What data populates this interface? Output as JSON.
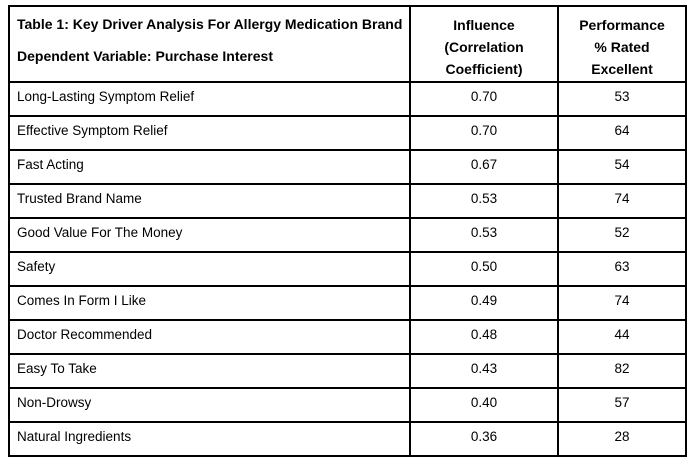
{
  "page": {
    "background_color": "#ffffff",
    "border_color": "#000000"
  },
  "table": {
    "title": "Table 1: Key Driver Analysis For Allergy Medication Brand",
    "subtitle": "Dependent Variable: Purchase Interest",
    "columns": {
      "influence_lines": [
        "Influence",
        "(Correlation",
        "Coefficient)"
      ],
      "performance_lines": [
        "Performance",
        "% Rated",
        "Excellent"
      ]
    },
    "rows": [
      {
        "attribute": "Long-Lasting Symptom Relief",
        "influence": "0.70",
        "performance": "53"
      },
      {
        "attribute": "Effective Symptom Relief",
        "influence": "0.70",
        "performance": "64"
      },
      {
        "attribute": "Fast Acting",
        "influence": "0.67",
        "performance": "54"
      },
      {
        "attribute": "Trusted Brand Name",
        "influence": "0.53",
        "performance": "74"
      },
      {
        "attribute": "Good Value For The Money",
        "influence": "0.53",
        "performance": "52"
      },
      {
        "attribute": "Safety",
        "influence": "0.50",
        "performance": "63"
      },
      {
        "attribute": "Comes In Form I Like",
        "influence": "0.49",
        "performance": "74"
      },
      {
        "attribute": "Doctor Recommended",
        "influence": "0.48",
        "performance": "44"
      },
      {
        "attribute": "Easy To Take",
        "influence": "0.43",
        "performance": "82"
      },
      {
        "attribute": "Non-Drowsy",
        "influence": "0.40",
        "performance": "57"
      },
      {
        "attribute": "Natural Ingredients",
        "influence": "0.36",
        "performance": "28"
      }
    ]
  }
}
